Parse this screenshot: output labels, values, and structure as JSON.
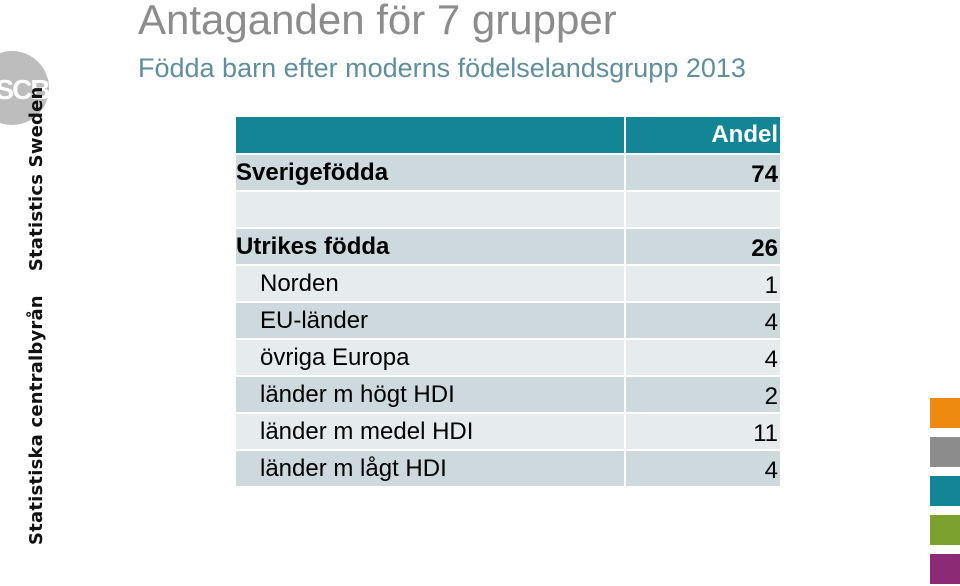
{
  "title": "Antaganden för 7 grupper",
  "subtitle": "Födda barn efter moderns födelselandsgrupp 2013",
  "logo": {
    "text": "SCB",
    "color": "#bdbdbd"
  },
  "brand": {
    "line1": "Statistiska centralbyrån",
    "line2": "Statistics Sweden"
  },
  "table": {
    "header": {
      "label": "",
      "value": "Andel"
    },
    "rows": [
      {
        "label": "Sverigefödda",
        "value": "74"
      },
      {
        "label": "",
        "value": ""
      },
      {
        "label": "Utrikes födda",
        "value": "26"
      },
      {
        "label": "Norden",
        "value": "1"
      },
      {
        "label": "EU-länder",
        "value": "4"
      },
      {
        "label": "övriga Europa",
        "value": "4"
      },
      {
        "label": "länder m högt HDI",
        "value": "2"
      },
      {
        "label": "länder m medel HDI",
        "value": "11"
      },
      {
        "label": "länder m lågt HDI",
        "value": "4"
      }
    ]
  },
  "colors": {
    "header": "#128597",
    "row_dark": "#cdd9dd",
    "row_light": "#e6ecee",
    "swatches": [
      "#ef8a10",
      "#8c8c8c",
      "#128597",
      "#7da12e",
      "#8c2a78"
    ]
  }
}
